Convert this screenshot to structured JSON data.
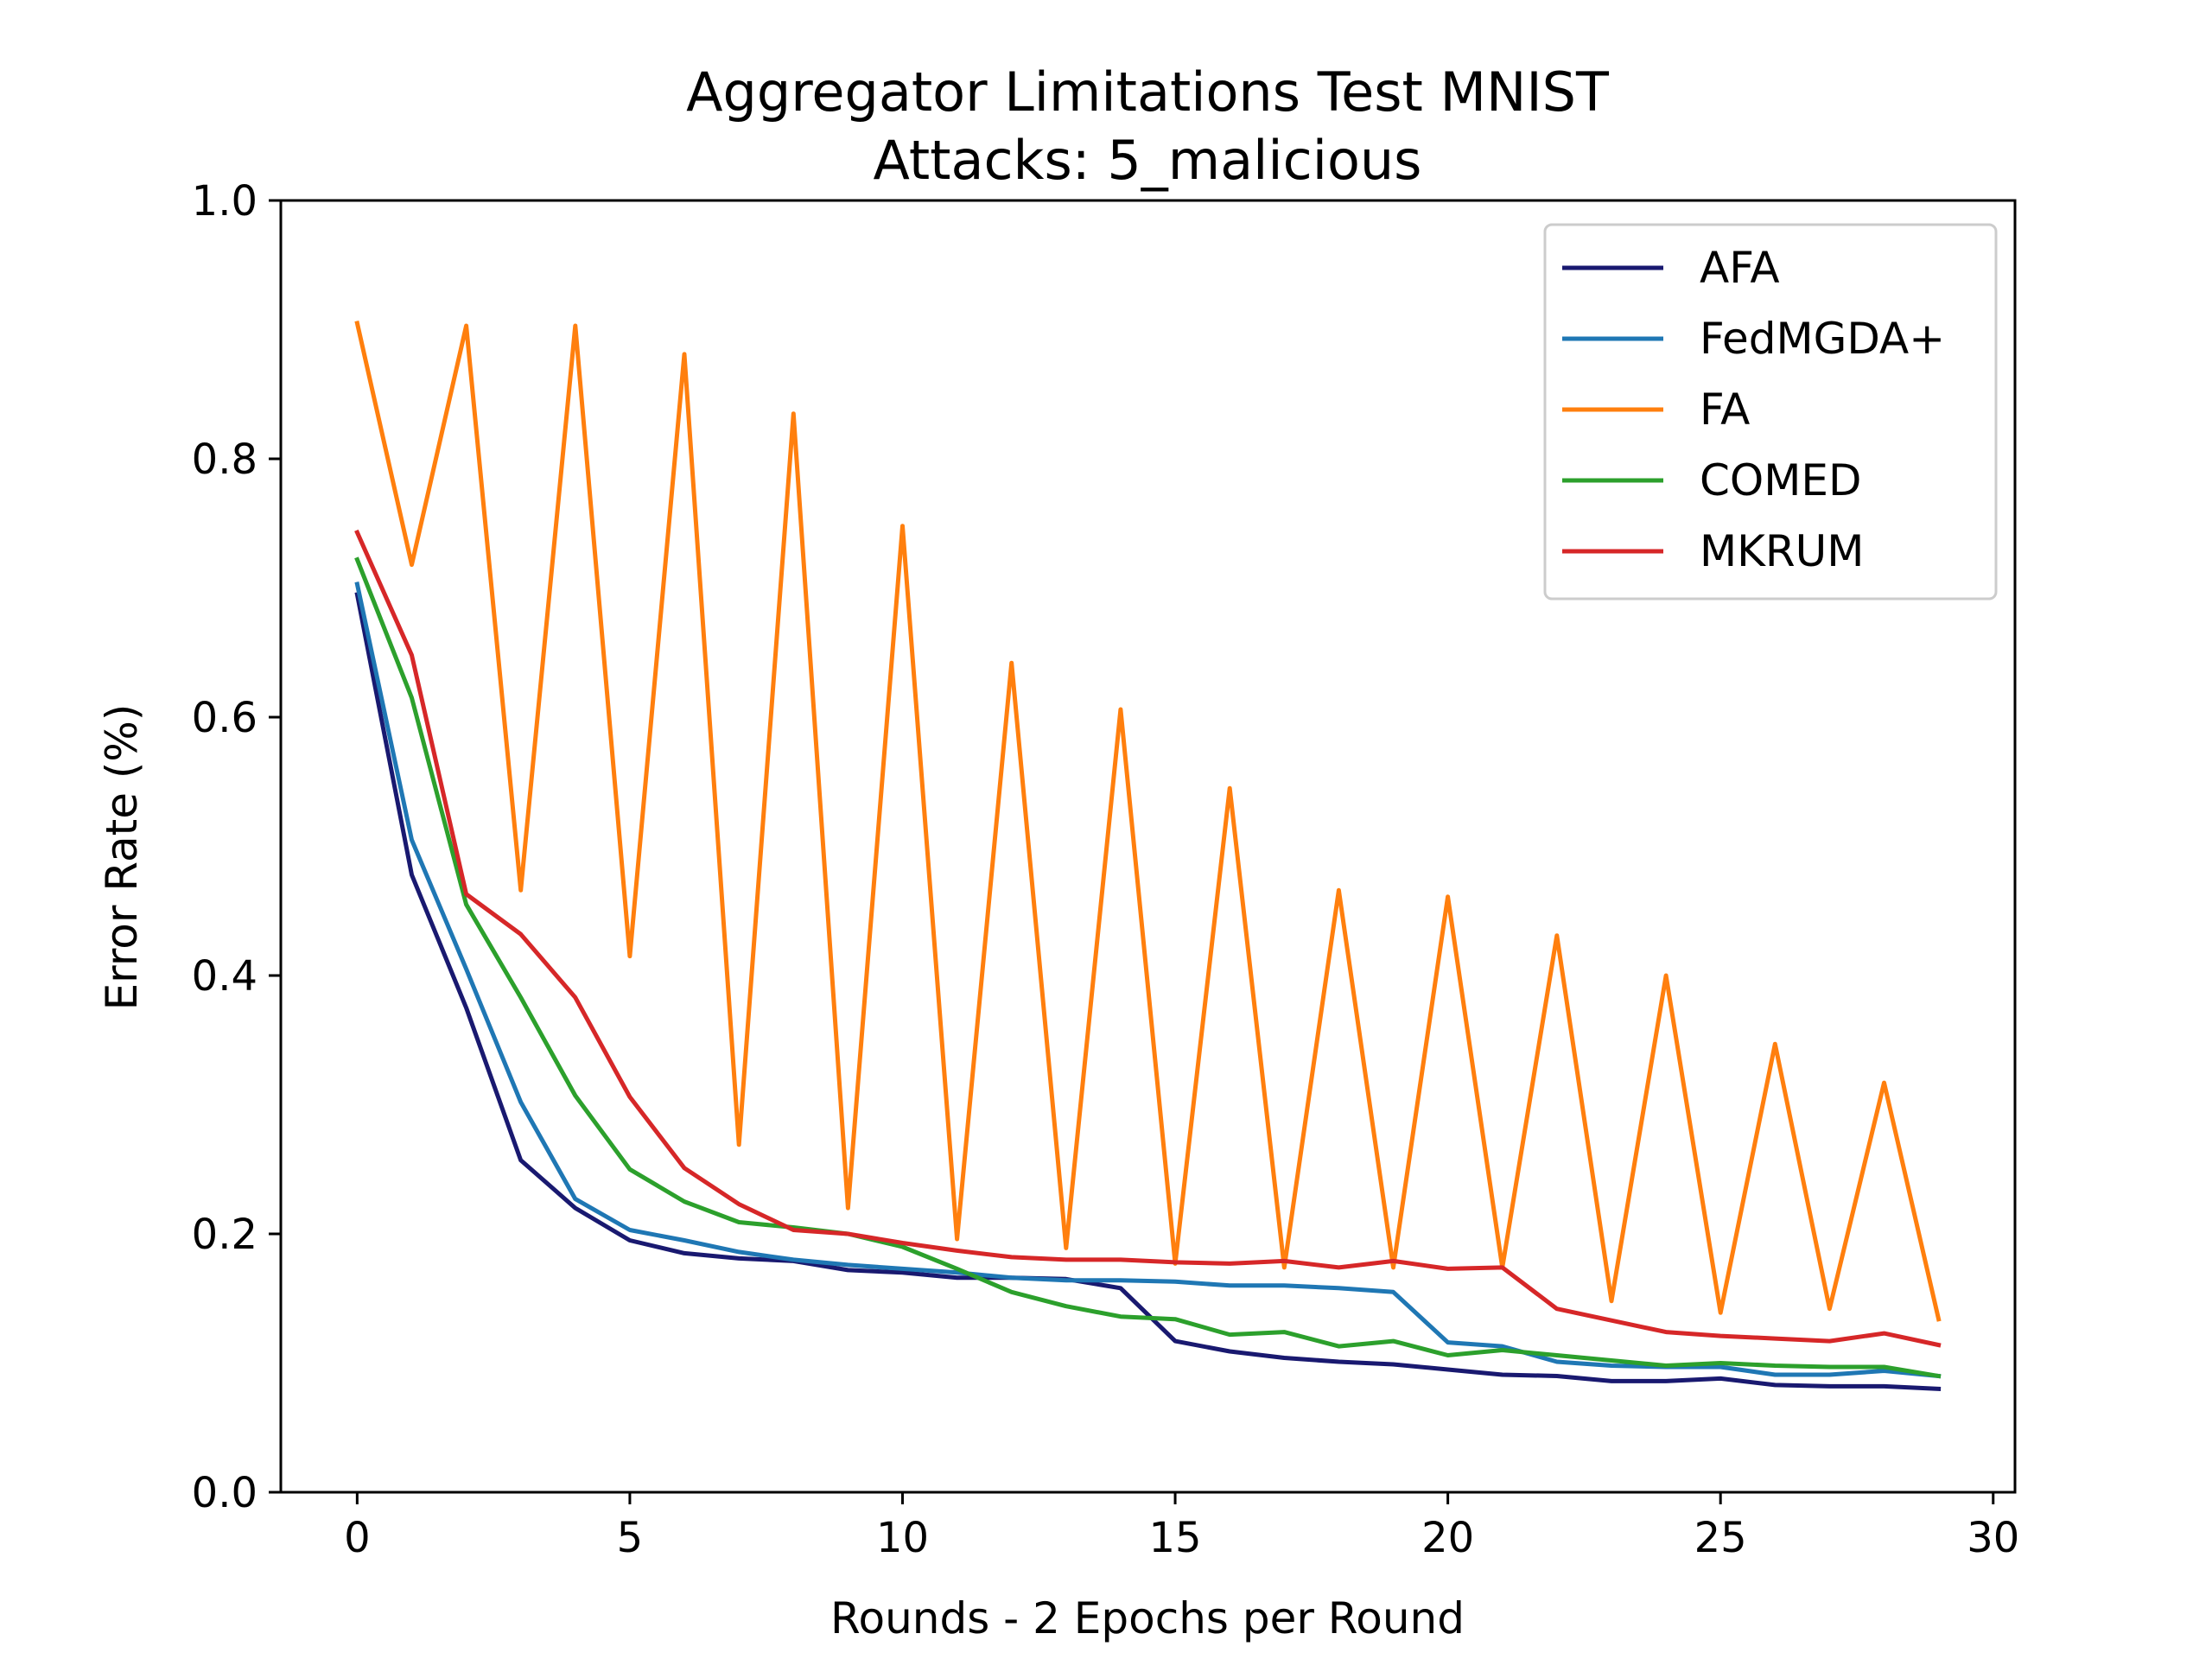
{
  "chart_data": {
    "type": "line",
    "title": "Aggregator Limitations Test MNIST",
    "subtitle": "Attacks: 5_malicious",
    "xlabel": "Rounds - 2 Epochs per Round",
    "ylabel": "Error Rate (%)",
    "xlim": [
      -1.4,
      30.4
    ],
    "ylim": [
      0.0,
      1.0
    ],
    "xticks": [
      0,
      5,
      10,
      15,
      20,
      25,
      30
    ],
    "xtick_labels": [
      "0",
      "5",
      "10",
      "15",
      "20",
      "25",
      "30"
    ],
    "yticks": [
      0.0,
      0.2,
      0.4,
      0.6,
      0.8,
      1.0
    ],
    "ytick_labels": [
      "0.0",
      "0.2",
      "0.4",
      "0.6",
      "0.8",
      "1.0"
    ],
    "grid": false,
    "legend_position": "top-right",
    "x": [
      0,
      1,
      2,
      3,
      4,
      5,
      6,
      7,
      8,
      9,
      10,
      11,
      12,
      13,
      14,
      15,
      16,
      17,
      18,
      19,
      20,
      21,
      22,
      23,
      24,
      25,
      26,
      27,
      28,
      29
    ],
    "series": [
      {
        "name": "AFA",
        "color": "#191970",
        "values": [
          0.695,
          0.478,
          0.375,
          0.257,
          0.22,
          0.195,
          0.185,
          0.181,
          0.179,
          0.172,
          0.17,
          0.166,
          0.166,
          0.165,
          0.158,
          0.117,
          0.109,
          0.104,
          0.101,
          0.099,
          0.095,
          0.091,
          0.09,
          0.086,
          0.086,
          0.088,
          0.083,
          0.082,
          0.082,
          0.08
        ]
      },
      {
        "name": "FedMGDA+",
        "color": "#1f77b4",
        "values": [
          0.703,
          0.505,
          0.405,
          0.302,
          0.227,
          0.203,
          0.195,
          0.186,
          0.18,
          0.176,
          0.173,
          0.17,
          0.166,
          0.164,
          0.164,
          0.163,
          0.16,
          0.16,
          0.158,
          0.155,
          0.116,
          0.113,
          0.101,
          0.098,
          0.097,
          0.097,
          0.091,
          0.091,
          0.094,
          0.09
        ]
      },
      {
        "name": "FA",
        "color": "#ff7f0e",
        "values": [
          0.905,
          0.718,
          0.903,
          0.466,
          0.903,
          0.415,
          0.881,
          0.269,
          0.835,
          0.22,
          0.748,
          0.196,
          0.642,
          0.189,
          0.606,
          0.177,
          0.545,
          0.174,
          0.466,
          0.174,
          0.461,
          0.174,
          0.431,
          0.148,
          0.4,
          0.139,
          0.347,
          0.142,
          0.317,
          0.134
        ]
      },
      {
        "name": "COMED",
        "color": "#2ca02c",
        "values": [
          0.722,
          0.615,
          0.455,
          0.383,
          0.307,
          0.25,
          0.225,
          0.209,
          0.205,
          0.2,
          0.19,
          0.173,
          0.155,
          0.144,
          0.136,
          0.134,
          0.122,
          0.124,
          0.113,
          0.117,
          0.106,
          0.11,
          0.106,
          0.102,
          0.098,
          0.1,
          0.098,
          0.097,
          0.097,
          0.09
        ]
      },
      {
        "name": "MKRUM",
        "color": "#d62728",
        "values": [
          0.743,
          0.648,
          0.463,
          0.432,
          0.383,
          0.306,
          0.251,
          0.223,
          0.203,
          0.2,
          0.193,
          0.187,
          0.182,
          0.18,
          0.18,
          0.178,
          0.177,
          0.179,
          0.174,
          0.179,
          0.173,
          0.174,
          0.142,
          0.133,
          0.124,
          0.121,
          0.119,
          0.117,
          0.123,
          0.114
        ]
      }
    ]
  }
}
